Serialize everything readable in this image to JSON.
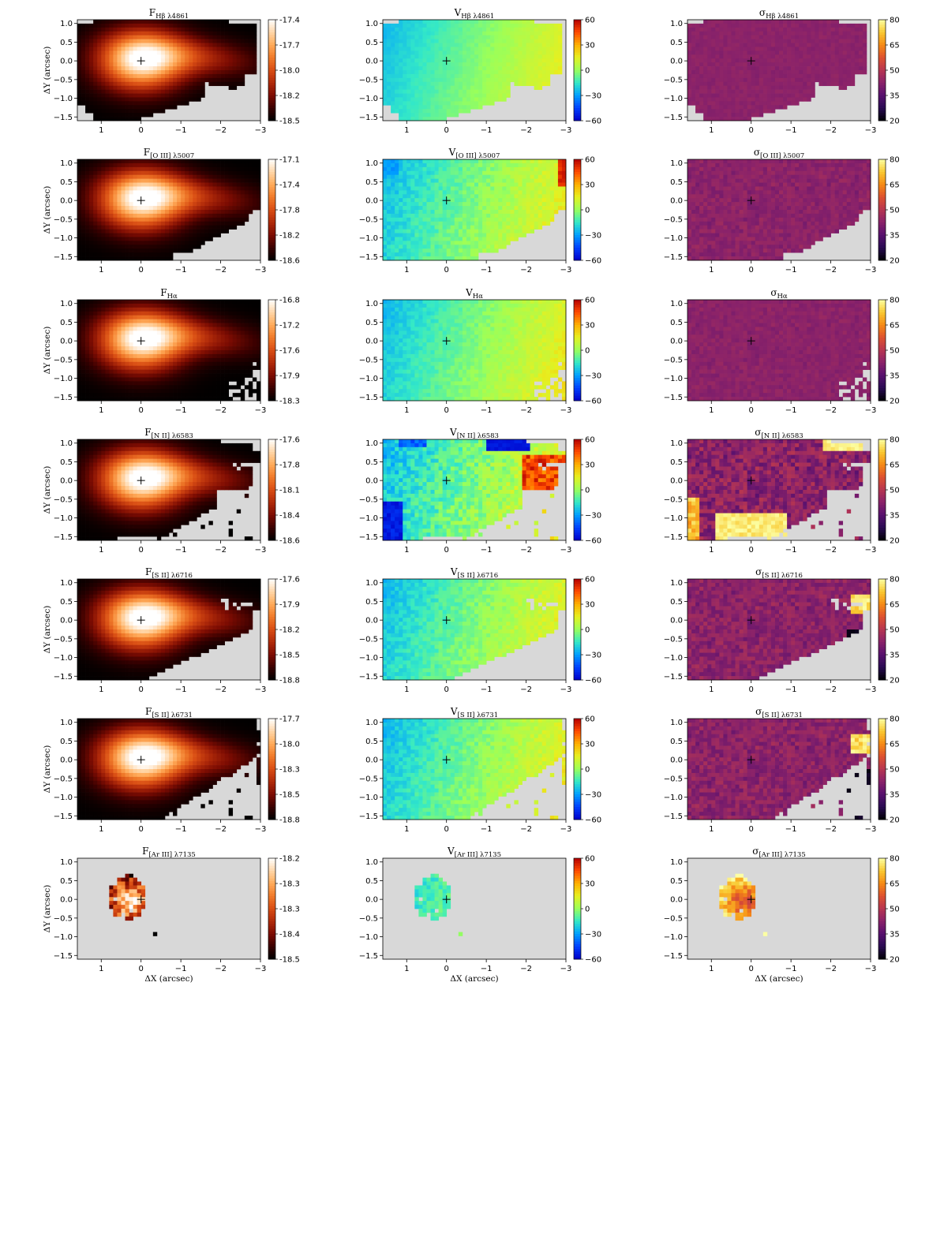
{
  "figure": {
    "xlabel": "ΔX (arcsec)",
    "ylabel": "ΔY (arcsec)",
    "x_ticks": [
      "1",
      "0",
      "−1",
      "−2",
      "−3"
    ],
    "y_ticks": [
      "1.0",
      "0.5",
      "0.0",
      "−0.5",
      "−1.0",
      "−1.5"
    ]
  },
  "colors": {
    "background": "#ffffff",
    "no_data": "#d8d8d8",
    "flux_cmap": [
      "#000000",
      "#3a0000",
      "#7d0c02",
      "#b02a0a",
      "#d94e14",
      "#f07a2a",
      "#ffab5a",
      "#ffd6a8",
      "#ffffff"
    ],
    "velocity_cmap": [
      "#0000c8",
      "#0040ff",
      "#00a0ff",
      "#33e8c8",
      "#9aff5a",
      "#e6f020",
      "#ffb000",
      "#ff4a00",
      "#b40000"
    ],
    "sigma_cmap": [
      "#000004",
      "#2a0b52",
      "#57106e",
      "#89226a",
      "#b73651",
      "#dd5130",
      "#f68b15",
      "#f9c932",
      "#fcffa4"
    ]
  },
  "chart_data": [
    {
      "type": "heatmap",
      "id": "f_hb",
      "title_main": "F",
      "title_sub": "Hβ λ4861",
      "cbar_ticks": [
        "-17.4",
        "-17.7",
        "-18.0",
        "-18.2",
        "-18.5"
      ],
      "map": "flux",
      "mask": "m_hb",
      "field": "flux",
      "center_level": 1.0,
      "edge_level": 0.05
    },
    {
      "type": "heatmap",
      "id": "v_hb",
      "title_main": "V",
      "title_sub": "Hβ λ4861",
      "cbar_ticks": [
        "60",
        "30",
        "0",
        "−30",
        "−60"
      ],
      "map": "velocity",
      "mask": "m_hb",
      "field": "vel",
      "noise": 0.03
    },
    {
      "type": "heatmap",
      "id": "s_hb",
      "title_main": "σ",
      "title_sub": "Hβ λ4861",
      "cbar_ticks": [
        "80",
        "65",
        "50",
        "35",
        "20"
      ],
      "map": "sigma",
      "mask": "m_hb",
      "field": "sig",
      "noise": 0.02
    },
    {
      "type": "heatmap",
      "id": "f_o3",
      "title_main": "F",
      "title_sub": "[O III] λ5007",
      "cbar_ticks": [
        "-17.1",
        "-17.4",
        "-17.8",
        "-18.2",
        "-18.6"
      ],
      "map": "flux",
      "mask": "m_o3",
      "field": "flux"
    },
    {
      "type": "heatmap",
      "id": "v_o3",
      "title_main": "V",
      "title_sub": "[O III] λ5007",
      "cbar_ticks": [
        "60",
        "30",
        "0",
        "−30",
        "−60"
      ],
      "map": "velocity",
      "mask": "m_o3",
      "field": "vel",
      "noise": 0.08
    },
    {
      "type": "heatmap",
      "id": "s_o3",
      "title_main": "σ",
      "title_sub": "[O III] λ5007",
      "cbar_ticks": [
        "80",
        "65",
        "50",
        "35",
        "20"
      ],
      "map": "sigma",
      "mask": "m_o3",
      "field": "sig",
      "noise": 0.08
    },
    {
      "type": "heatmap",
      "id": "f_ha",
      "title_main": "F",
      "title_sub": "Hα",
      "cbar_ticks": [
        "-16.8",
        "-17.2",
        "-17.6",
        "-17.9",
        "-18.3"
      ],
      "map": "flux",
      "mask": "m_ha",
      "field": "flux"
    },
    {
      "type": "heatmap",
      "id": "v_ha",
      "title_main": "V",
      "title_sub": "Hα",
      "cbar_ticks": [
        "60",
        "30",
        "0",
        "−30",
        "−60"
      ],
      "map": "velocity",
      "mask": "m_ha",
      "field": "vel",
      "noise": 0.06
    },
    {
      "type": "heatmap",
      "id": "s_ha",
      "title_main": "σ",
      "title_sub": "Hα",
      "cbar_ticks": [
        "80",
        "65",
        "50",
        "35",
        "20"
      ],
      "map": "sigma",
      "mask": "m_ha",
      "field": "sig",
      "noise": 0.05
    },
    {
      "type": "heatmap",
      "id": "f_n2",
      "title_main": "F",
      "title_sub": "[N II] λ6583",
      "cbar_ticks": [
        "-17.6",
        "-17.8",
        "-18.1",
        "-18.4",
        "-18.6"
      ],
      "map": "flux",
      "mask": "m_n2",
      "field": "flux"
    },
    {
      "type": "heatmap",
      "id": "v_n2",
      "title_main": "V",
      "title_sub": "[N II] λ6583",
      "cbar_ticks": [
        "60",
        "30",
        "0",
        "−30",
        "−60"
      ],
      "map": "velocity",
      "mask": "m_n2",
      "field": "vel",
      "noise": 0.14
    },
    {
      "type": "heatmap",
      "id": "s_n2",
      "title_main": "σ",
      "title_sub": "[N II] λ6583",
      "cbar_ticks": [
        "80",
        "65",
        "50",
        "35",
        "20"
      ],
      "map": "sigma",
      "mask": "m_n2",
      "field": "sig",
      "noise": 0.22
    },
    {
      "type": "heatmap",
      "id": "f_s2a",
      "title_main": "F",
      "title_sub": "[S II] λ6716",
      "cbar_ticks": [
        "-17.6",
        "-17.9",
        "-18.2",
        "-18.5",
        "-18.8"
      ],
      "map": "flux",
      "mask": "m_s2a",
      "field": "flux"
    },
    {
      "type": "heatmap",
      "id": "v_s2a",
      "title_main": "V",
      "title_sub": "[S II] λ6716",
      "cbar_ticks": [
        "60",
        "30",
        "0",
        "−30",
        "−60"
      ],
      "map": "velocity",
      "mask": "m_s2a",
      "field": "vel",
      "noise": 0.08
    },
    {
      "type": "heatmap",
      "id": "s_s2a",
      "title_main": "σ",
      "title_sub": "[S II] λ6716",
      "cbar_ticks": [
        "80",
        "65",
        "50",
        "35",
        "20"
      ],
      "map": "sigma",
      "mask": "m_s2a",
      "field": "sig",
      "noise": 0.14
    },
    {
      "type": "heatmap",
      "id": "f_s2b",
      "title_main": "F",
      "title_sub": "[S II] λ6731",
      "cbar_ticks": [
        "-17.7",
        "-18.0",
        "-18.3",
        "-18.5",
        "-18.8"
      ],
      "map": "flux",
      "mask": "m_s2b",
      "field": "flux"
    },
    {
      "type": "heatmap",
      "id": "v_s2b",
      "title_main": "V",
      "title_sub": "[S II] λ6731",
      "cbar_ticks": [
        "60",
        "30",
        "0",
        "−30",
        "−60"
      ],
      "map": "velocity",
      "mask": "m_s2b",
      "field": "vel",
      "noise": 0.08
    },
    {
      "type": "heatmap",
      "id": "s_s2b",
      "title_main": "σ",
      "title_sub": "[S II] λ6731",
      "cbar_ticks": [
        "80",
        "65",
        "50",
        "35",
        "20"
      ],
      "map": "sigma",
      "mask": "m_s2b",
      "field": "sig",
      "noise": 0.14
    },
    {
      "type": "heatmap",
      "id": "f_ar3",
      "title_main": "F",
      "title_sub": "[Ar III] λ7135",
      "cbar_ticks": [
        "-18.2",
        "-18.3",
        "-18.3",
        "-18.4",
        "-18.5"
      ],
      "map": "flux",
      "mask": "m_ar3",
      "field": "flux_small"
    },
    {
      "type": "heatmap",
      "id": "v_ar3",
      "title_main": "V",
      "title_sub": "[Ar III] λ7135",
      "cbar_ticks": [
        "60",
        "30",
        "0",
        "−30",
        "−60"
      ],
      "map": "velocity",
      "mask": "m_ar3",
      "field": "vel",
      "noise": 0.1
    },
    {
      "type": "heatmap",
      "id": "s_ar3",
      "title_main": "σ",
      "title_sub": "[Ar III] λ7135",
      "cbar_ticks": [
        "80",
        "65",
        "50",
        "35",
        "20"
      ],
      "map": "sigma",
      "mask": "m_ar3",
      "field": "sig_small",
      "noise": 0.2
    }
  ]
}
